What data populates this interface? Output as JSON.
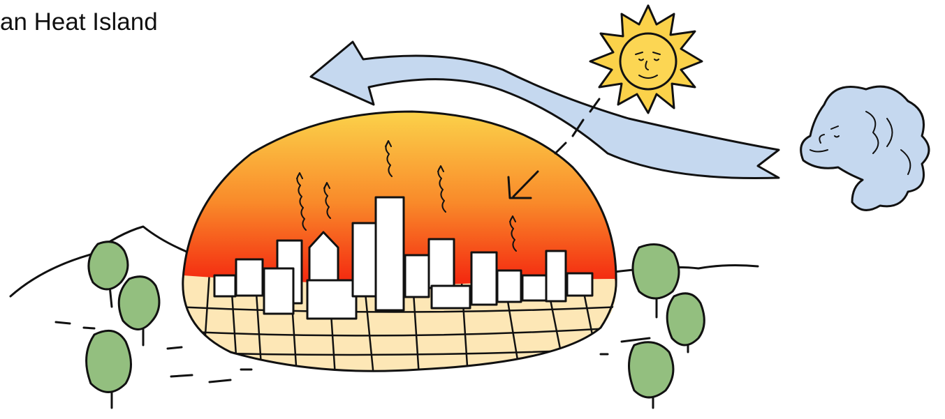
{
  "title": "an Heat Island"
}
